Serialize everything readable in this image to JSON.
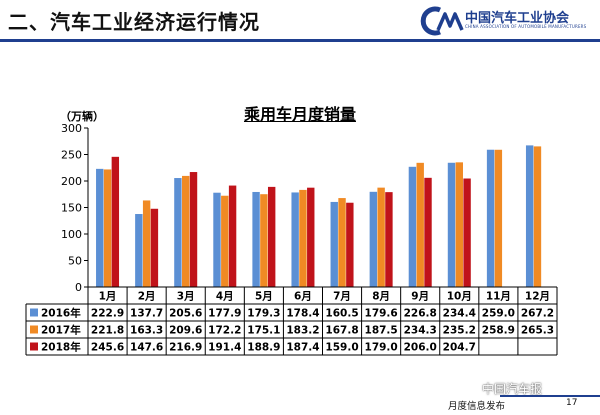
{
  "header": {
    "title": "二、汽车工业经济运行情况"
  },
  "logo": {
    "cn": "中国汽车工业协会",
    "en": "CHINA ASSOCIATION OF AUTOMOBILE MANUFACTURERS",
    "mark": "CM"
  },
  "footer": {
    "text": "月度信息发布",
    "page": "17",
    "watermark": "中国汽车报"
  },
  "colors": {
    "s2016": "#5b8fd4",
    "s2017": "#f08a24",
    "s2018": "#c0131a",
    "plot_bg": "#ffffff",
    "title_bar": "#1f3f8f"
  },
  "chart_data": {
    "type": "bar",
    "title": "乘用车月度销量",
    "ylabel": "（万辆）",
    "ylim": [
      0,
      300
    ],
    "yticks": [
      0,
      50,
      100,
      150,
      200,
      250,
      300
    ],
    "categories": [
      "1月",
      "2月",
      "3月",
      "4月",
      "5月",
      "6月",
      "7月",
      "8月",
      "9月",
      "10月",
      "11月",
      "12月"
    ],
    "series": [
      {
        "name": "2016年",
        "values": [
          222.9,
          137.7,
          205.6,
          177.9,
          179.3,
          178.4,
          160.5,
          179.6,
          226.8,
          234.4,
          259.0,
          267.2
        ]
      },
      {
        "name": "2017年",
        "values": [
          221.8,
          163.3,
          209.6,
          172.2,
          175.1,
          183.2,
          167.8,
          187.5,
          234.3,
          235.2,
          258.9,
          265.3
        ]
      },
      {
        "name": "2018年",
        "values": [
          245.6,
          147.6,
          216.9,
          191.4,
          188.9,
          187.4,
          159.0,
          179.0,
          206.0,
          204.7,
          null,
          null
        ]
      }
    ],
    "legend": "table-bottom",
    "grid": false
  }
}
